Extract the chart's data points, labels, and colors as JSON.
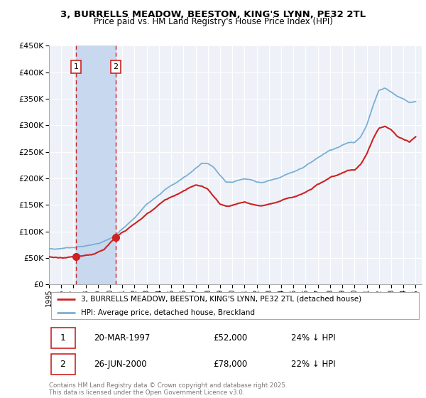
{
  "title": "3, BURRELLS MEADOW, BEESTON, KING'S LYNN, PE32 2TL",
  "subtitle": "Price paid vs. HM Land Registry's House Price Index (HPI)",
  "legend_line1": "3, BURRELLS MEADOW, BEESTON, KING'S LYNN, PE32 2TL (detached house)",
  "legend_line2": "HPI: Average price, detached house, Breckland",
  "transaction1_date": "20-MAR-1997",
  "transaction1_price": 52000,
  "transaction1_hpi": "24% ↓ HPI",
  "transaction2_date": "26-JUN-2000",
  "transaction2_price": 78000,
  "transaction2_hpi": "22% ↓ HPI",
  "hpi_color": "#7bafd4",
  "price_color": "#cc2222",
  "vline_color": "#cc2222",
  "span_color": "#c8d8ee",
  "background_color": "#eef2f8",
  "grid_color": "#ffffff",
  "ylim_min": 0,
  "ylim_max": 450000,
  "footnote": "Contains HM Land Registry data © Crown copyright and database right 2025.\nThis data is licensed under the Open Government Licence v3.0.",
  "hpi_knots_x": [
    1995,
    1995.5,
    1996,
    1996.5,
    1997,
    1997.5,
    1998,
    1998.5,
    1999,
    1999.5,
    2000,
    2000.5,
    2001,
    2001.5,
    2002,
    2002.5,
    2003,
    2003.5,
    2004,
    2004.5,
    2005,
    2005.5,
    2006,
    2006.5,
    2007,
    2007.5,
    2008,
    2008.5,
    2009,
    2009.5,
    2010,
    2010.5,
    2011,
    2011.5,
    2012,
    2012.5,
    2013,
    2013.5,
    2014,
    2014.5,
    2015,
    2015.5,
    2016,
    2016.5,
    2017,
    2017.5,
    2018,
    2018.5,
    2019,
    2019.5,
    2020,
    2020.5,
    2021,
    2021.5,
    2022,
    2022.5,
    2023,
    2023.5,
    2024,
    2024.5,
    2025
  ],
  "hpi_knots_y": [
    65000,
    64000,
    65500,
    67000,
    68000,
    70000,
    71000,
    73000,
    76000,
    80000,
    85000,
    92000,
    102000,
    112000,
    122000,
    135000,
    148000,
    158000,
    168000,
    178000,
    185000,
    192000,
    200000,
    208000,
    218000,
    228000,
    228000,
    220000,
    205000,
    192000,
    192000,
    196000,
    198000,
    196000,
    193000,
    192000,
    195000,
    198000,
    202000,
    208000,
    212000,
    218000,
    224000,
    232000,
    240000,
    248000,
    255000,
    260000,
    265000,
    270000,
    270000,
    282000,
    305000,
    340000,
    370000,
    375000,
    368000,
    360000,
    355000,
    348000,
    350000
  ],
  "price_knots_x": [
    1995,
    1995.5,
    1996,
    1996.5,
    1997,
    1997.25,
    1997.5,
    1998,
    1998.5,
    1999,
    1999.5,
    2000,
    2000.5,
    2001,
    2001.5,
    2002,
    2002.5,
    2003,
    2003.5,
    2004,
    2004.5,
    2005,
    2005.5,
    2006,
    2006.5,
    2007,
    2007.5,
    2008,
    2008.5,
    2009,
    2009.5,
    2010,
    2010.5,
    2011,
    2011.5,
    2012,
    2012.5,
    2013,
    2013.5,
    2014,
    2014.5,
    2015,
    2015.5,
    2016,
    2016.5,
    2017,
    2017.5,
    2018,
    2018.5,
    2019,
    2019.5,
    2020,
    2020.5,
    2021,
    2021.5,
    2022,
    2022.5,
    2023,
    2023.5,
    2024,
    2024.5,
    2025
  ],
  "price_knots_y": [
    50000,
    49000,
    50000,
    51000,
    52000,
    52000,
    54000,
    56000,
    58000,
    62000,
    66000,
    78000,
    88000,
    96000,
    104000,
    112000,
    120000,
    130000,
    138000,
    148000,
    156000,
    162000,
    168000,
    175000,
    182000,
    188000,
    185000,
    178000,
    165000,
    152000,
    148000,
    150000,
    154000,
    156000,
    153000,
    150000,
    150000,
    153000,
    156000,
    160000,
    165000,
    168000,
    172000,
    176000,
    182000,
    190000,
    197000,
    204000,
    208000,
    213000,
    218000,
    218000,
    228000,
    248000,
    275000,
    295000,
    298000,
    290000,
    278000,
    272000,
    265000,
    275000
  ]
}
